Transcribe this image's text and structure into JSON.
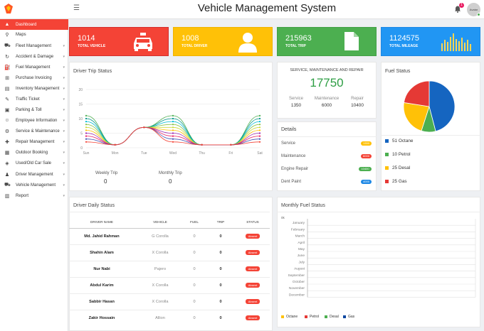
{
  "header": {
    "title": "Vehicle Management System",
    "notification_count": "1",
    "avatar_label": "Avatar"
  },
  "colors": {
    "red": "#f44336",
    "amber": "#ffc107",
    "green": "#4caf50",
    "blue": "#2196f3",
    "navy": "#0d47a1"
  },
  "sidebar": {
    "items": [
      {
        "label": "Dashboard",
        "icon": "dashboard-icon",
        "chevron": ""
      },
      {
        "label": "Maps",
        "icon": "map-pin-icon",
        "chevron": ""
      },
      {
        "label": "Fleet Management",
        "icon": "car-icon",
        "chevron": "▾"
      },
      {
        "label": "Accident & Damage",
        "icon": "refresh-icon",
        "chevron": "▾"
      },
      {
        "label": "Fuel Management",
        "icon": "fuel-icon",
        "chevron": "▾"
      },
      {
        "label": "Purchase Invoicing",
        "icon": "cart-icon",
        "chevron": "▾"
      },
      {
        "label": "Inventory Management",
        "icon": "inventory-icon",
        "chevron": "▾"
      },
      {
        "label": "Traffic Ticket",
        "icon": "ticket-icon",
        "chevron": "▾"
      },
      {
        "label": "Parking & Toll",
        "icon": "parking-icon",
        "chevron": "▾"
      },
      {
        "label": "Employee Information",
        "icon": "employee-icon",
        "chevron": "▾"
      },
      {
        "label": "Service & Maintenance",
        "icon": "service-icon",
        "chevron": "▾"
      },
      {
        "label": "Repair Management",
        "icon": "wrench-icon",
        "chevron": "▾"
      },
      {
        "label": "Outdoor Booking",
        "icon": "booking-icon",
        "chevron": "▾"
      },
      {
        "label": "Used/Old Car Sale",
        "icon": "sale-icon",
        "chevron": "▾"
      },
      {
        "label": "Driver Management",
        "icon": "driver-icon",
        "chevron": "▾"
      },
      {
        "label": "Vehicle Management",
        "icon": "vehicle-icon",
        "chevron": "▾"
      },
      {
        "label": "Report",
        "icon": "report-icon",
        "chevron": "▾"
      }
    ]
  },
  "stats": [
    {
      "value": "1014",
      "label": "TOTAL VEHICLE",
      "icon": "taxi-icon"
    },
    {
      "value": "1008",
      "label": "TOTAL DRIVER",
      "icon": "person-icon"
    },
    {
      "value": "215963",
      "label": "TOTAL TRIP",
      "icon": "document-icon"
    },
    {
      "value": "1124575",
      "label": "TOTAL MILEAGE",
      "icon": "bar-chart-icon"
    }
  ],
  "trip_status": {
    "title": "Driver Trip Status",
    "weekly_label": "Weekly Trip",
    "weekly_value": "0",
    "monthly_label": "Monthly Trip",
    "monthly_value": "0"
  },
  "service": {
    "title": "SERVICE, MAINTENANCE AND REPAIR",
    "total": "17750",
    "items": [
      {
        "label": "Service",
        "value": "1350"
      },
      {
        "label": "Maintenance",
        "value": "6000"
      },
      {
        "label": "Repair",
        "value": "10400"
      }
    ]
  },
  "details": {
    "title": "Details",
    "rows": [
      {
        "label": "Service",
        "value": "1350"
      },
      {
        "label": "Maintenance",
        "value": "6000"
      },
      {
        "label": "Engine Repair",
        "value": "10400"
      },
      {
        "label": "Dent Paint",
        "value": "4000"
      }
    ]
  },
  "fuel_status": {
    "title": "Fuel Status",
    "legend": [
      {
        "label": "51 Octane"
      },
      {
        "label": "10 Petrol"
      },
      {
        "label": "25 Desal"
      },
      {
        "label": "25 Gas"
      }
    ]
  },
  "daily": {
    "title": "Driver Daily Status",
    "headers": [
      "DRIVER NAME",
      "VEHICLE",
      "FUEL",
      "TRIP",
      "STATUS"
    ],
    "rows": [
      {
        "name": "Md. Jahid Rahman",
        "vehicle": "G Corolla",
        "fuel": "0",
        "trip": "0",
        "status": "Absent"
      },
      {
        "name": "Shahin Alam",
        "vehicle": "X Corolla",
        "fuel": "0",
        "trip": "0",
        "status": "Absent"
      },
      {
        "name": "Nur Nabi",
        "vehicle": "Pajero",
        "fuel": "0",
        "trip": "0",
        "status": "Absent"
      },
      {
        "name": "Abdul Karim",
        "vehicle": "X Corolla",
        "fuel": "0",
        "trip": "0",
        "status": "Absent"
      },
      {
        "name": "Sabbir Hasan",
        "vehicle": "X Corolla",
        "fuel": "0",
        "trip": "0",
        "status": "Absent"
      },
      {
        "name": "Zakir Hossain",
        "vehicle": "Allion",
        "fuel": "0",
        "trip": "0",
        "status": "Absent"
      }
    ]
  },
  "monthly_fuel": {
    "title": "Monthly Fuel Status",
    "corner_label": "0k",
    "legend": [
      {
        "label": "Octane"
      },
      {
        "label": "Petrol"
      },
      {
        "label": "Desal"
      },
      {
        "label": "Gas"
      }
    ]
  },
  "chart_data": [
    {
      "type": "line",
      "title": "Driver Trip Status",
      "categories": [
        "Sun",
        "Mon",
        "Tue",
        "Wed",
        "Thu",
        "Fri",
        "Sat"
      ],
      "ylim": [
        0,
        20
      ],
      "yticks": [
        "20",
        "15",
        "10",
        "5",
        "0"
      ],
      "series": [
        {
          "values": [
            11,
            1,
            7,
            11,
            1,
            1,
            11
          ],
          "color": "#4caf50"
        },
        {
          "values": [
            10,
            1,
            7,
            10,
            1,
            1,
            10
          ],
          "color": "#009688"
        },
        {
          "values": [
            9,
            1,
            7,
            9,
            1,
            1,
            9
          ],
          "color": "#00bcd4"
        },
        {
          "values": [
            8,
            1,
            7,
            8,
            1,
            1,
            8
          ],
          "color": "#8bc34a"
        },
        {
          "values": [
            7,
            1,
            7,
            7,
            1,
            1,
            7
          ],
          "color": "#cddc39"
        },
        {
          "values": [
            6,
            1,
            7,
            6,
            1,
            1,
            6
          ],
          "color": "#ffc107"
        },
        {
          "values": [
            5,
            1,
            7,
            5,
            1,
            1,
            5
          ],
          "color": "#9c27b0"
        },
        {
          "values": [
            4,
            1,
            7,
            4,
            1,
            1,
            4
          ],
          "color": "#e91e63"
        },
        {
          "values": [
            3,
            1,
            7,
            3,
            1,
            1,
            3
          ],
          "color": "#3f51b5"
        },
        {
          "values": [
            2,
            1,
            7,
            2,
            1,
            1,
            2
          ],
          "color": "#f44336"
        }
      ],
      "grid": true
    },
    {
      "type": "pie",
      "title": "Fuel Status",
      "categories": [
        "Octane",
        "Petrol",
        "Desal",
        "Gas"
      ],
      "values": [
        51,
        10,
        25,
        25
      ],
      "colors": [
        "#1565c0",
        "#4caf50",
        "#ffc107",
        "#e53935"
      ]
    },
    {
      "type": "bar",
      "title": "Monthly Fuel Status",
      "categories": [
        "January",
        "February",
        "March",
        "April",
        "May",
        "June",
        "July",
        "August",
        "September",
        "October",
        "November",
        "December"
      ],
      "series": [
        {
          "name": "Octane",
          "values": [
            0,
            0,
            0,
            0,
            0,
            0,
            0,
            0,
            0,
            0,
            0,
            0
          ]
        },
        {
          "name": "Petrol",
          "values": [
            0,
            0,
            0,
            0,
            0,
            0,
            0,
            0,
            0,
            0,
            0,
            0
          ]
        },
        {
          "name": "Desal",
          "values": [
            0,
            0,
            0,
            0,
            0,
            0,
            0,
            0,
            0,
            0,
            0,
            0
          ]
        },
        {
          "name": "Gas",
          "values": [
            0,
            0,
            0,
            0,
            0,
            0,
            0,
            0,
            0,
            0,
            0,
            0
          ]
        }
      ],
      "colors": [
        "#ffc107",
        "#e53935",
        "#4caf50",
        "#0d47a1"
      ],
      "grid": true
    }
  ]
}
